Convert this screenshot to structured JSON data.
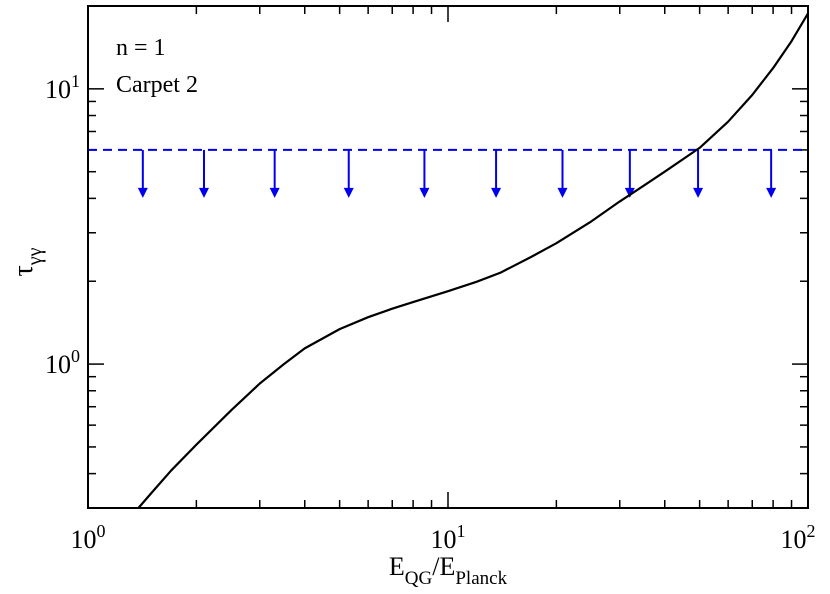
{
  "chart_data": {
    "type": "line",
    "xscale": "log",
    "yscale": "log",
    "xlim": [
      1,
      100
    ],
    "ylim": [
      0.3,
      20
    ],
    "x_tick_labels": [
      {
        "base": "10",
        "exp": "0",
        "value": 1
      },
      {
        "base": "10",
        "exp": "1",
        "value": 10
      },
      {
        "base": "10",
        "exp": "2",
        "value": 100
      }
    ],
    "y_tick_labels": [
      {
        "base": "10",
        "exp": "0",
        "value": 1
      },
      {
        "base": "10",
        "exp": "1",
        "value": 10
      }
    ],
    "xlabel": {
      "main": "E",
      "sub1": "QG",
      "slash": "/E",
      "sub2": "Planck"
    },
    "ylabel": {
      "main": "τ",
      "sub": "γγ"
    },
    "annotations": [
      "n = 1",
      "Carpet 2"
    ],
    "grid": false,
    "series": [
      {
        "color": "#000000",
        "style": "solid",
        "x": [
          1.38,
          1.5,
          1.7,
          2.0,
          2.5,
          3.0,
          3.5,
          4.0,
          5.0,
          6.0,
          7.0,
          8.0,
          10.0,
          12.0,
          14.0,
          17.0,
          20.0,
          25.0,
          30.0,
          35.0,
          40.0,
          50.0,
          60.0,
          70.0,
          80.0,
          90.0,
          100.0
        ],
        "y": [
          0.3,
          0.34,
          0.41,
          0.51,
          0.68,
          0.85,
          1.0,
          1.14,
          1.34,
          1.48,
          1.59,
          1.68,
          1.84,
          1.99,
          2.15,
          2.45,
          2.75,
          3.3,
          3.9,
          4.45,
          5.0,
          6.1,
          7.6,
          9.5,
          11.9,
          14.9,
          18.8
        ]
      },
      {
        "color": "#0000ee",
        "style": "dashed",
        "kind": "upper-limit",
        "y": 6.0,
        "limit_arrow_x": [
          1.42,
          2.1,
          3.3,
          5.3,
          8.6,
          13.6,
          20.8,
          32.0,
          49.5,
          79.0
        ]
      }
    ]
  }
}
